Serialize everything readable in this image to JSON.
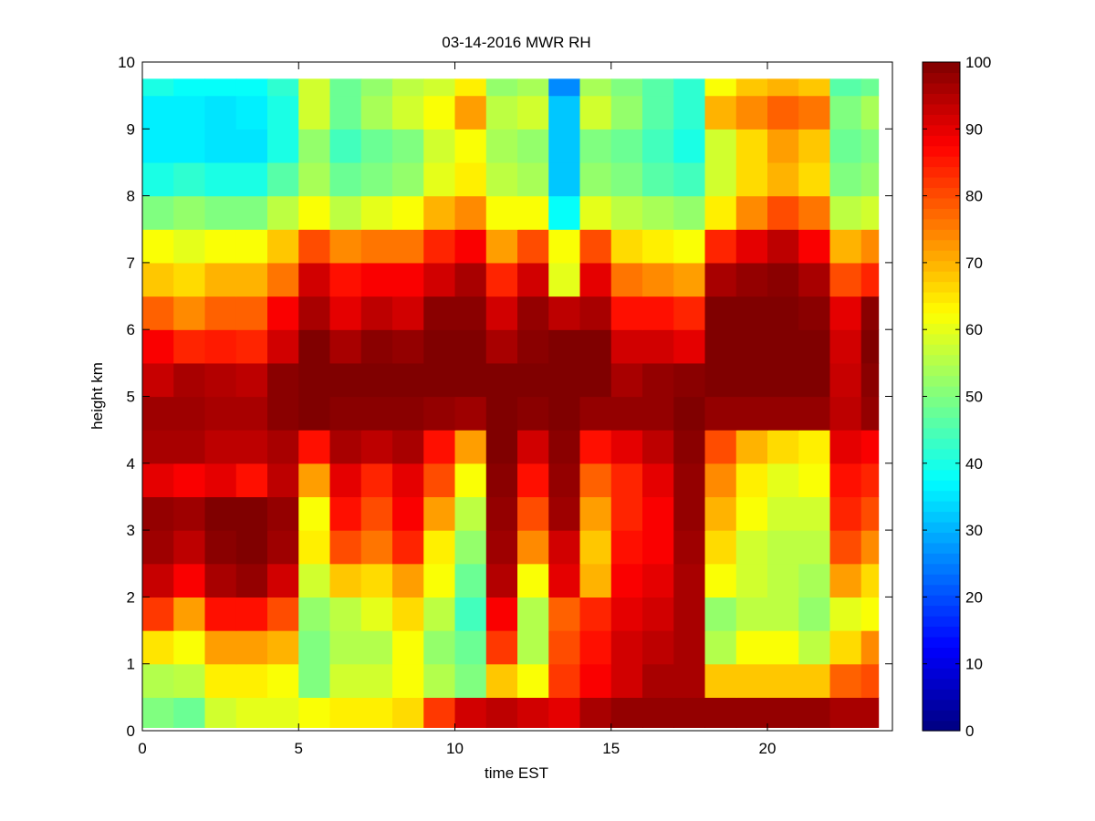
{
  "chart_data": {
    "type": "heatmap",
    "title": "03-14-2016 MWR RH",
    "xlabel": "time EST",
    "ylabel": "height km",
    "xlim": [
      0,
      24
    ],
    "ylim": [
      0,
      10
    ],
    "xticks": [
      0,
      5,
      10,
      15,
      20
    ],
    "yticks": [
      0,
      1,
      2,
      3,
      4,
      5,
      6,
      7,
      8,
      9,
      10
    ],
    "colorbar": {
      "min": 0,
      "max": 100,
      "ticks": [
        0,
        10,
        20,
        30,
        40,
        50,
        60,
        70,
        80,
        90,
        100
      ],
      "colormap": "jet"
    },
    "x": [
      0,
      1,
      2,
      3,
      4,
      5,
      6,
      7,
      8,
      9,
      10,
      11,
      12,
      13,
      14,
      15,
      16,
      17,
      18,
      19,
      20,
      21,
      22,
      23
    ],
    "y": [
      0.05,
      0.5,
      1,
      1.5,
      2,
      2.5,
      3,
      3.5,
      4,
      4.5,
      5,
      5.5,
      6,
      6.5,
      7,
      7.5,
      8,
      8.5,
      9,
      9.5
    ],
    "z": [
      [
        50,
        48,
        58,
        60,
        60,
        62,
        64,
        64,
        66,
        82,
        92,
        94,
        92,
        90,
        96,
        98,
        98,
        98,
        98,
        98,
        98,
        98,
        96,
        96
      ],
      [
        55,
        56,
        64,
        64,
        62,
        50,
        58,
        58,
        62,
        55,
        50,
        68,
        62,
        82,
        88,
        92,
        96,
        96,
        68,
        68,
        68,
        68,
        78,
        80
      ],
      [
        65,
        62,
        72,
        72,
        70,
        50,
        55,
        55,
        62,
        52,
        48,
        82,
        55,
        80,
        86,
        92,
        94,
        96,
        55,
        62,
        62,
        56,
        66,
        74
      ],
      [
        82,
        72,
        86,
        86,
        80,
        52,
        56,
        60,
        66,
        56,
        44,
        88,
        55,
        78,
        84,
        90,
        92,
        96,
        52,
        56,
        56,
        52,
        60,
        62
      ],
      [
        93,
        88,
        96,
        98,
        92,
        58,
        68,
        66,
        72,
        62,
        48,
        95,
        62,
        90,
        70,
        88,
        90,
        96,
        62,
        58,
        56,
        54,
        72,
        66
      ],
      [
        97,
        94,
        99,
        100,
        97,
        64,
        80,
        76,
        84,
        64,
        52,
        97,
        74,
        92,
        68,
        86,
        88,
        97,
        66,
        58,
        56,
        56,
        80,
        74
      ],
      [
        98,
        97,
        100,
        100,
        98,
        62,
        86,
        80,
        88,
        72,
        56,
        98,
        80,
        97,
        72,
        84,
        88,
        98,
        70,
        62,
        58,
        58,
        84,
        80
      ],
      [
        90,
        88,
        90,
        86,
        94,
        72,
        90,
        84,
        90,
        80,
        62,
        99,
        86,
        98,
        78,
        84,
        90,
        98,
        74,
        64,
        60,
        62,
        86,
        84
      ],
      [
        96,
        96,
        94,
        94,
        96,
        86,
        96,
        94,
        96,
        86,
        72,
        100,
        92,
        99,
        86,
        90,
        94,
        99,
        80,
        70,
        66,
        64,
        90,
        88
      ],
      [
        97,
        97,
        96,
        96,
        99,
        100,
        99,
        99,
        99,
        98,
        97,
        100,
        99,
        100,
        98,
        98,
        98,
        100,
        98,
        98,
        98,
        98,
        94,
        98
      ],
      [
        93,
        96,
        95,
        94,
        99,
        100,
        100,
        100,
        100,
        100,
        100,
        100,
        100,
        100,
        100,
        96,
        98,
        99,
        100,
        100,
        100,
        100,
        93,
        99
      ],
      [
        88,
        84,
        85,
        84,
        92,
        100,
        96,
        99,
        98,
        100,
        100,
        96,
        99,
        100,
        100,
        92,
        92,
        90,
        100,
        100,
        100,
        100,
        92,
        100
      ],
      [
        78,
        74,
        78,
        78,
        88,
        96,
        90,
        94,
        92,
        99,
        99,
        92,
        98,
        94,
        96,
        86,
        86,
        84,
        100,
        100,
        100,
        99,
        90,
        99
      ],
      [
        68,
        66,
        70,
        70,
        76,
        92,
        86,
        88,
        88,
        92,
        96,
        84,
        92,
        60,
        90,
        76,
        74,
        72,
        96,
        98,
        99,
        96,
        80,
        84
      ],
      [
        62,
        60,
        62,
        62,
        68,
        80,
        74,
        76,
        76,
        84,
        88,
        72,
        80,
        62,
        80,
        66,
        64,
        62,
        84,
        90,
        94,
        88,
        70,
        74
      ],
      [
        50,
        52,
        50,
        50,
        56,
        62,
        56,
        60,
        62,
        70,
        74,
        62,
        62,
        38,
        60,
        56,
        54,
        52,
        64,
        74,
        80,
        76,
        56,
        58
      ],
      [
        40,
        42,
        40,
        40,
        46,
        54,
        48,
        50,
        52,
        60,
        64,
        56,
        54,
        32,
        52,
        50,
        46,
        44,
        58,
        66,
        70,
        66,
        50,
        52
      ],
      [
        36,
        36,
        35,
        35,
        40,
        52,
        44,
        48,
        50,
        58,
        62,
        54,
        52,
        32,
        50,
        48,
        44,
        40,
        58,
        66,
        72,
        68,
        48,
        50
      ],
      [
        36,
        36,
        35,
        36,
        40,
        58,
        48,
        54,
        58,
        62,
        72,
        56,
        58,
        32,
        58,
        52,
        46,
        42,
        70,
        74,
        78,
        76,
        50,
        54
      ],
      [
        40,
        38,
        38,
        38,
        42,
        58,
        48,
        52,
        56,
        58,
        64,
        52,
        54,
        26,
        54,
        50,
        46,
        42,
        62,
        68,
        70,
        68,
        46,
        48
      ]
    ]
  }
}
